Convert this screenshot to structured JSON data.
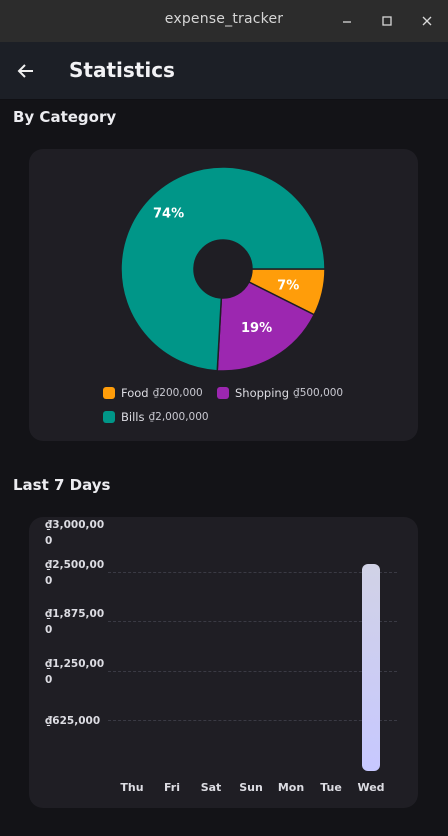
{
  "window": {
    "title": "expense_tracker"
  },
  "appbar": {
    "title": "Statistics"
  },
  "sections": {
    "by_category": "By Category",
    "last7": "Last 7 Days"
  },
  "pie": {
    "slices": [
      {
        "label": "7%",
        "name": "Food",
        "amount": "₫200,000",
        "percent": 7.4,
        "color": "#ff9d0a"
      },
      {
        "label": "19%",
        "name": "Shopping",
        "amount": "₫500,000",
        "percent": 18.5,
        "color": "#9c27b0"
      },
      {
        "label": "74%",
        "name": "Bills",
        "amount": "₫2,000,000",
        "percent": 74.1,
        "color": "#009688"
      }
    ]
  },
  "chart_data": {
    "type": "bar",
    "title": "Last 7 Days",
    "categories": [
      "Thu",
      "Fri",
      "Sat",
      "Sun",
      "Mon",
      "Tue",
      "Wed"
    ],
    "values": [
      0,
      0,
      0,
      0,
      0,
      0,
      2500000
    ],
    "ylim": [
      0,
      3000000
    ],
    "y_ticks": [
      "₫3,000,000",
      "₫2,500,000",
      "₫1,875,000",
      "₫1,250,000",
      "₫625,000"
    ],
    "grid": true
  }
}
